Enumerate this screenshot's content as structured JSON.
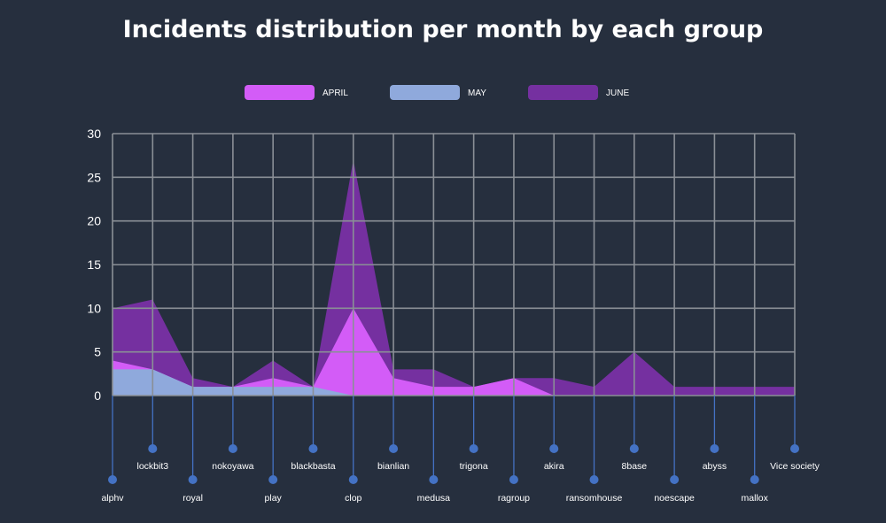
{
  "chart_data": {
    "type": "area",
    "title": "Incidents distribution per month by each group",
    "categories": [
      "alphv",
      "lockbit3",
      "royal",
      "nokoyawa",
      "play",
      "blackbasta",
      "clop",
      "bianlian",
      "medusa",
      "trigona",
      "ragroup",
      "akira",
      "ransomhouse",
      "8base",
      "noescape",
      "abyss",
      "mallox",
      "Vice society"
    ],
    "series": [
      {
        "name": "JUNE",
        "color": "#7530a0",
        "values": [
          10,
          11,
          2,
          1,
          4,
          1,
          27,
          3,
          3,
          1,
          2,
          2,
          1,
          5,
          1,
          1,
          1,
          1
        ]
      },
      {
        "name": "APRIL",
        "color": "#d35cf7",
        "values": [
          4,
          3,
          1,
          1,
          2,
          1,
          10,
          2,
          1,
          1,
          2,
          0,
          0,
          0,
          0,
          0,
          0,
          0
        ]
      },
      {
        "name": "MAY",
        "color": "#8fa9dc",
        "values": [
          3,
          3,
          1,
          1,
          1,
          1,
          0,
          0,
          0,
          0,
          0,
          0,
          0,
          0,
          0,
          0,
          0,
          0
        ]
      }
    ],
    "legend_order": [
      "APRIL",
      "MAY",
      "JUNE"
    ],
    "y_ticks": [
      "0",
      "5",
      "10",
      "15",
      "20",
      "25",
      "30"
    ],
    "ylim": [
      0,
      30
    ],
    "grid": true,
    "legend_position": "top",
    "axis_line_color": "#4472c4"
  }
}
